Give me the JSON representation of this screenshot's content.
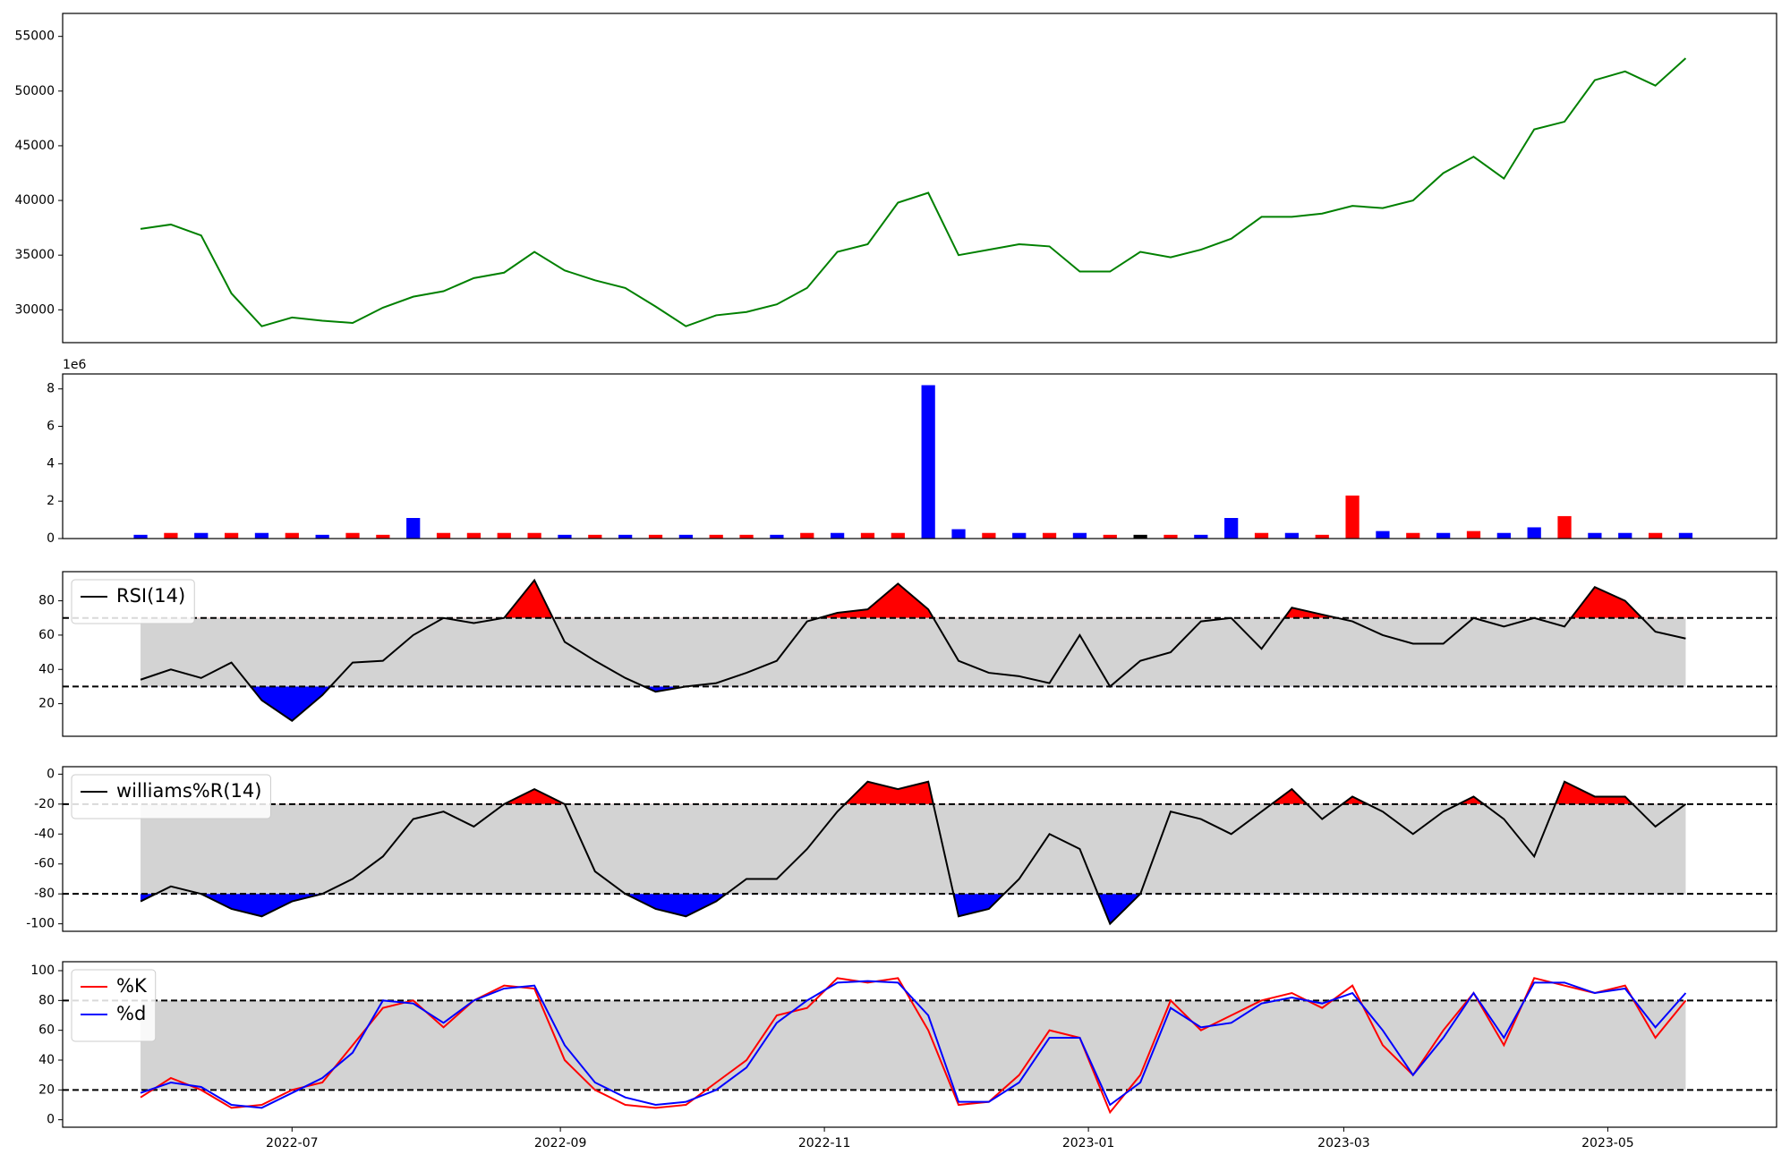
{
  "chart_data": [
    {
      "type": "line",
      "color": "green",
      "x": [
        26,
        33,
        40,
        47,
        54,
        61,
        68,
        75,
        82,
        89,
        96,
        103,
        110,
        117,
        124,
        131,
        138,
        145,
        152,
        159,
        166,
        173,
        180,
        187,
        194,
        201,
        208,
        215,
        222,
        229,
        236,
        243,
        250,
        257,
        264,
        271,
        278,
        285,
        292,
        299,
        306,
        313,
        320,
        327,
        334,
        341,
        348,
        355,
        362,
        369,
        376,
        383
      ],
      "values": [
        37400,
        37800,
        36800,
        31500,
        28500,
        29300,
        29000,
        28800,
        30200,
        31200,
        31700,
        32900,
        33400,
        35300,
        33600,
        32700,
        32000,
        30300,
        28500,
        29500,
        29800,
        30500,
        32000,
        35300,
        36000,
        39800,
        40700,
        35000,
        35500,
        36000,
        35800,
        33500,
        33500,
        35300,
        34800,
        35500,
        36500,
        38500,
        38500,
        38800,
        39500,
        39300,
        40000,
        42500,
        44000,
        42000,
        46500,
        47200,
        51000,
        51800,
        50500,
        53000
      ],
      "xlim": [
        8,
        404
      ],
      "ylim": [
        27000,
        57100
      ],
      "yticks": [
        30000,
        35000,
        40000,
        45000,
        50000,
        55000
      ]
    },
    {
      "type": "bar",
      "offset_label": "1e6",
      "x": [
        26,
        33,
        40,
        47,
        54,
        61,
        68,
        75,
        82,
        89,
        96,
        103,
        110,
        117,
        124,
        131,
        138,
        145,
        152,
        159,
        166,
        173,
        180,
        187,
        194,
        201,
        208,
        215,
        222,
        229,
        236,
        243,
        250,
        257,
        264,
        271,
        278,
        285,
        292,
        299,
        306,
        313,
        320,
        327,
        334,
        341,
        348,
        355,
        362,
        369,
        376,
        383
      ],
      "values": [
        0.2,
        0.3,
        0.3,
        0.3,
        0.3,
        0.3,
        0.2,
        0.3,
        0.2,
        1.1,
        0.3,
        0.3,
        0.3,
        0.3,
        0.2,
        0.2,
        0.2,
        0.2,
        0.2,
        0.2,
        0.2,
        0.2,
        0.3,
        0.3,
        0.3,
        0.3,
        8.2,
        0.5,
        0.3,
        0.3,
        0.3,
        0.3,
        0.2,
        0.2,
        0.2,
        0.2,
        1.1,
        0.3,
        0.3,
        0.2,
        2.3,
        0.4,
        0.3,
        0.3,
        0.4,
        0.3,
        0.6,
        1.2,
        0.3,
        0.3,
        0.3,
        0.3
      ],
      "colors": [
        "blue",
        "red",
        "blue",
        "red",
        "blue",
        "red",
        "blue",
        "red",
        "red",
        "blue",
        "red",
        "red",
        "red",
        "red",
        "blue",
        "red",
        "blue",
        "red",
        "blue",
        "red",
        "red",
        "blue",
        "red",
        "blue",
        "red",
        "red",
        "blue",
        "blue",
        "red",
        "blue",
        "red",
        "blue",
        "red",
        "black",
        "red",
        "blue",
        "blue",
        "red",
        "blue",
        "red",
        "red",
        "blue",
        "red",
        "blue",
        "red",
        "blue",
        "blue",
        "red",
        "blue",
        "blue",
        "red",
        "blue"
      ],
      "xlim": [
        8,
        404
      ],
      "ylim": [
        0,
        8.8
      ],
      "yticks": [
        0,
        2,
        4,
        6,
        8
      ]
    },
    {
      "type": "line",
      "legend": "upper left",
      "thresholds": [
        30,
        70
      ],
      "band_color": "lightgray",
      "over_color": "red",
      "under_color": "blue",
      "x": [
        26,
        33,
        40,
        47,
        54,
        61,
        68,
        75,
        82,
        89,
        96,
        103,
        110,
        117,
        124,
        131,
        138,
        145,
        152,
        159,
        166,
        173,
        180,
        187,
        194,
        201,
        208,
        215,
        222,
        229,
        236,
        243,
        250,
        257,
        264,
        271,
        278,
        285,
        292,
        299,
        306,
        313,
        320,
        327,
        334,
        341,
        348,
        355,
        362,
        369,
        376,
        383
      ],
      "series": [
        {
          "name": "RSI(14)",
          "color": "black",
          "values": [
            34,
            40,
            35,
            44,
            22,
            10,
            25,
            44,
            45,
            60,
            70,
            67,
            70,
            92,
            56,
            45,
            35,
            27,
            30,
            32,
            38,
            45,
            68,
            73,
            75,
            90,
            75,
            45,
            38,
            36,
            32,
            60,
            30,
            45,
            50,
            68,
            70,
            52,
            76,
            72,
            68,
            60,
            55,
            55,
            70,
            65,
            70,
            65,
            88,
            80,
            62,
            58
          ]
        }
      ],
      "xlim": [
        8,
        404
      ],
      "ylim": [
        1,
        97
      ],
      "yticks": [
        20,
        40,
        60,
        80
      ]
    },
    {
      "type": "line",
      "legend": "upper left",
      "thresholds": [
        -80,
        -20
      ],
      "band_color": "lightgray",
      "over_color": "red",
      "under_color": "blue",
      "x": [
        26,
        33,
        40,
        47,
        54,
        61,
        68,
        75,
        82,
        89,
        96,
        103,
        110,
        117,
        124,
        131,
        138,
        145,
        152,
        159,
        166,
        173,
        180,
        187,
        194,
        201,
        208,
        215,
        222,
        229,
        236,
        243,
        250,
        257,
        264,
        271,
        278,
        285,
        292,
        299,
        306,
        313,
        320,
        327,
        334,
        341,
        348,
        355,
        362,
        369,
        376,
        383
      ],
      "series": [
        {
          "name": "williams%R(14)",
          "color": "black",
          "values": [
            -85,
            -75,
            -80,
            -90,
            -95,
            -85,
            -80,
            -70,
            -55,
            -30,
            -25,
            -35,
            -20,
            -10,
            -20,
            -65,
            -80,
            -90,
            -95,
            -85,
            -70,
            -70,
            -50,
            -25,
            -5,
            -10,
            -5,
            -95,
            -90,
            -70,
            -40,
            -50,
            -100,
            -80,
            -25,
            -30,
            -40,
            -25,
            -10,
            -30,
            -15,
            -25,
            -40,
            -25,
            -15,
            -30,
            -55,
            -5,
            -15,
            -15,
            -35,
            -20
          ]
        }
      ],
      "xlim": [
        8,
        404
      ],
      "ylim": [
        -105,
        5
      ],
      "yticks": [
        -100,
        -80,
        -60,
        -40,
        -20,
        0
      ]
    },
    {
      "type": "line",
      "legend": "upper left",
      "thresholds": [
        20,
        80
      ],
      "band_color": "lightgray",
      "x": [
        26,
        33,
        40,
        47,
        54,
        61,
        68,
        75,
        82,
        89,
        96,
        103,
        110,
        117,
        124,
        131,
        138,
        145,
        152,
        159,
        166,
        173,
        180,
        187,
        194,
        201,
        208,
        215,
        222,
        229,
        236,
        243,
        250,
        257,
        264,
        271,
        278,
        285,
        292,
        299,
        306,
        313,
        320,
        327,
        334,
        341,
        348,
        355,
        362,
        369,
        376,
        383
      ],
      "series": [
        {
          "name": "%K",
          "color": "red",
          "values": [
            15,
            28,
            20,
            8,
            10,
            20,
            25,
            50,
            75,
            80,
            62,
            80,
            90,
            88,
            40,
            20,
            10,
            8,
            10,
            25,
            40,
            70,
            75,
            95,
            92,
            95,
            60,
            10,
            12,
            30,
            60,
            55,
            5,
            30,
            80,
            60,
            70,
            80,
            85,
            75,
            90,
            50,
            30,
            60,
            85,
            50,
            95,
            90,
            85,
            90,
            55,
            80
          ]
        },
        {
          "name": "%d",
          "color": "blue",
          "values": [
            18,
            25,
            22,
            10,
            8,
            18,
            28,
            45,
            80,
            78,
            65,
            80,
            88,
            90,
            50,
            25,
            15,
            10,
            12,
            20,
            35,
            65,
            80,
            92,
            93,
            92,
            70,
            12,
            12,
            25,
            55,
            55,
            10,
            25,
            75,
            62,
            65,
            78,
            82,
            78,
            85,
            60,
            30,
            55,
            85,
            55,
            92,
            92,
            85,
            88,
            62,
            85
          ]
        }
      ],
      "xlim": [
        8,
        404
      ],
      "ylim": [
        -5,
        106
      ],
      "yticks": [
        0,
        20,
        40,
        60,
        80,
        100
      ],
      "xticks": [
        {
          "value": 61,
          "label": "2022-07"
        },
        {
          "value": 123,
          "label": "2022-09"
        },
        {
          "value": 184,
          "label": "2022-11"
        },
        {
          "value": 245,
          "label": "2023-01"
        },
        {
          "value": 304,
          "label": "2023-03"
        },
        {
          "value": 365,
          "label": "2023-05"
        }
      ]
    }
  ]
}
